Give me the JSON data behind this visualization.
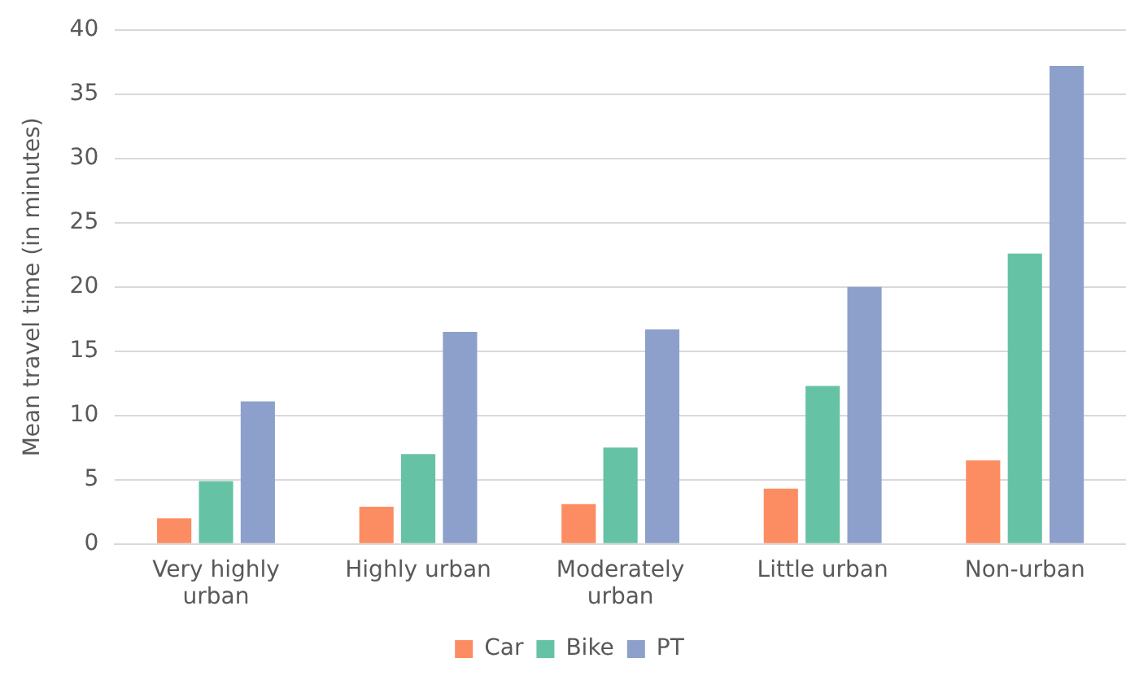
{
  "chart_data": {
    "type": "bar",
    "ylabel": "Mean travel time (in minutes)",
    "categories": [
      "Very highly urban",
      "Highly urban",
      "Moderately urban",
      "Little urban",
      "Non-urban"
    ],
    "series": [
      {
        "name": "Car",
        "color": "#fc8d62",
        "values": [
          2.0,
          2.9,
          3.1,
          4.3,
          6.5
        ]
      },
      {
        "name": "Bike",
        "color": "#66c2a5",
        "values": [
          4.9,
          7.0,
          7.5,
          12.3,
          22.6
        ]
      },
      {
        "name": "PT",
        "color": "#8da0cb",
        "values": [
          11.1,
          16.5,
          16.7,
          20.0,
          37.2
        ]
      }
    ],
    "ylim": [
      0,
      40
    ],
    "yticks": [
      0,
      5,
      10,
      15,
      20,
      25,
      30,
      35,
      40
    ],
    "grid": "y",
    "legend": "bottom"
  }
}
